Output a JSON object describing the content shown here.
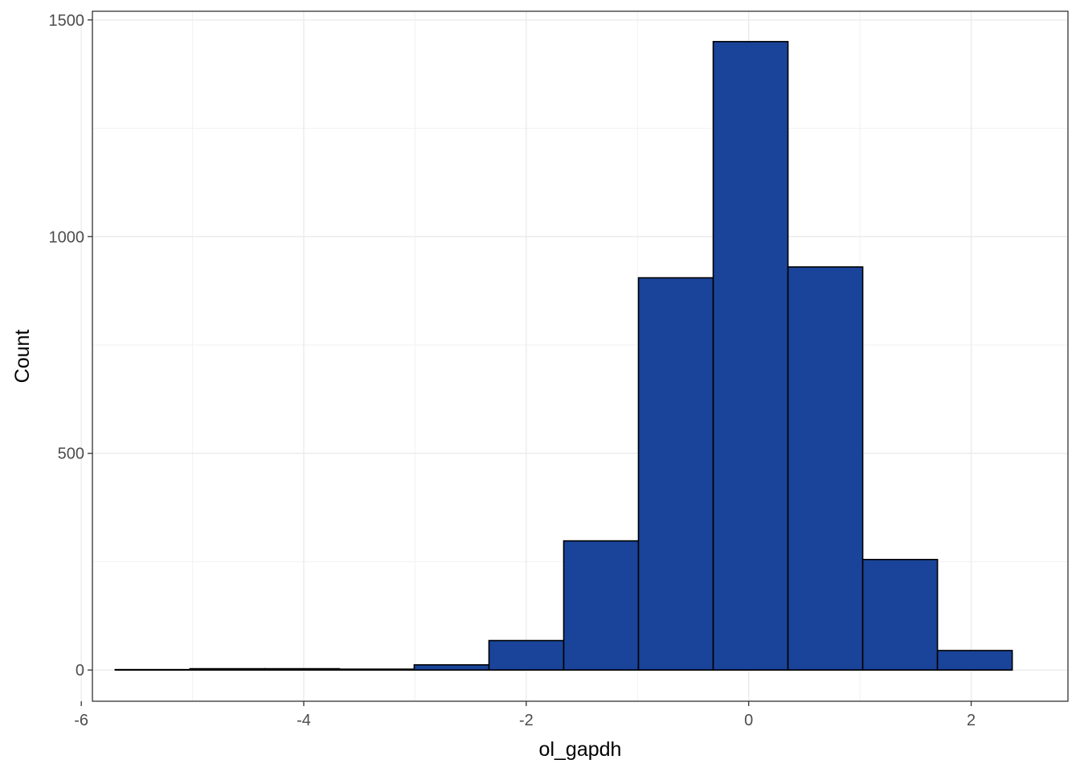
{
  "chart_data": {
    "type": "bar",
    "subtype": "histogram",
    "xlabel": "ol_gapdh",
    "ylabel": "Count",
    "xlim": [
      -5.9,
      2.87
    ],
    "ylim": [
      -72,
      1520
    ],
    "x_ticks": [
      -6,
      -4,
      -2,
      0,
      2
    ],
    "x_tick_labels": [
      "-6",
      "-4",
      "-2",
      "0",
      "2"
    ],
    "y_ticks": [
      0,
      500,
      1000,
      1500
    ],
    "y_tick_labels": [
      "0",
      "500",
      "1000",
      "1500"
    ],
    "y_minor_ticks": [
      250,
      750,
      1250
    ],
    "grid": true,
    "bar_fill": "#1a4499",
    "bar_stroke": "#000000",
    "bins": [
      {
        "x0": -5.695,
        "x1": -5.023,
        "count": 1
      },
      {
        "x0": -5.023,
        "x1": -4.351,
        "count": 3
      },
      {
        "x0": -4.351,
        "x1": -3.679,
        "count": 3
      },
      {
        "x0": -3.679,
        "x1": -3.007,
        "count": 2
      },
      {
        "x0": -3.007,
        "x1": -2.335,
        "count": 12
      },
      {
        "x0": -2.335,
        "x1": -1.663,
        "count": 68
      },
      {
        "x0": -1.663,
        "x1": -0.991,
        "count": 298
      },
      {
        "x0": -0.991,
        "x1": -0.319,
        "count": 905
      },
      {
        "x0": -0.319,
        "x1": 0.353,
        "count": 1450
      },
      {
        "x0": 0.353,
        "x1": 1.025,
        "count": 930
      },
      {
        "x0": 1.025,
        "x1": 1.697,
        "count": 255
      },
      {
        "x0": 1.697,
        "x1": 2.369,
        "count": 45
      }
    ]
  }
}
